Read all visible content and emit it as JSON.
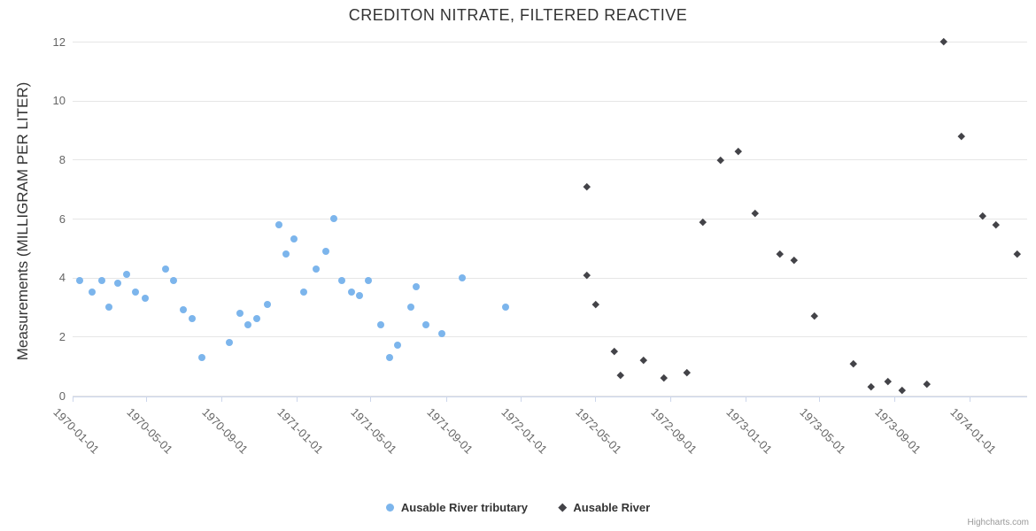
{
  "title": "CREDITON NITRATE, FILTERED REACTIVE",
  "credits": "Highcharts.com",
  "chart_data": {
    "type": "scatter",
    "title": "CREDITON NITRATE, FILTERED REACTIVE",
    "xlabel": "",
    "ylabel": "Measurements (MILLIGRAM PER LITER)",
    "ylim": [
      0,
      12
    ],
    "y_ticks": [
      0,
      2,
      4,
      6,
      8,
      10,
      12
    ],
    "xlim": [
      "1970-01-01",
      "1974-04-04"
    ],
    "x_tick_labels": [
      "1970-01-01",
      "1970-05-01",
      "1970-09-01",
      "1971-01-01",
      "1971-05-01",
      "1971-09-01",
      "1972-01-01",
      "1972-05-01",
      "1972-09-01",
      "1973-01-01",
      "1973-05-01",
      "1973-09-01",
      "1974-01-01"
    ],
    "grid": "horizontal-only",
    "legend_position": "bottom-center",
    "series": [
      {
        "name": "Ausable River tributary",
        "color": "#7cb5ec",
        "marker": "circle",
        "data": [
          [
            "1970-01-13",
            3.9
          ],
          [
            "1970-02-02",
            3.5
          ],
          [
            "1970-02-17",
            3.9
          ],
          [
            "1970-03-01",
            3.0
          ],
          [
            "1970-03-16",
            3.8
          ],
          [
            "1970-03-30",
            4.1
          ],
          [
            "1970-04-13",
            3.5
          ],
          [
            "1970-04-29",
            3.3
          ],
          [
            "1970-06-01",
            4.3
          ],
          [
            "1970-06-15",
            3.9
          ],
          [
            "1970-06-30",
            2.9
          ],
          [
            "1970-07-15",
            2.6
          ],
          [
            "1970-07-31",
            1.3
          ],
          [
            "1970-09-14",
            1.8
          ],
          [
            "1970-09-30",
            2.8
          ],
          [
            "1970-10-13",
            2.4
          ],
          [
            "1970-10-28",
            2.6
          ],
          [
            "1970-11-15",
            3.1
          ],
          [
            "1970-12-03",
            5.8
          ],
          [
            "1970-12-14",
            4.8
          ],
          [
            "1970-12-27",
            5.3
          ],
          [
            "1971-01-13",
            3.5
          ],
          [
            "1971-02-02",
            4.3
          ],
          [
            "1971-02-17",
            4.9
          ],
          [
            "1971-03-02",
            6.0
          ],
          [
            "1971-03-15",
            3.9
          ],
          [
            "1971-03-31",
            3.5
          ],
          [
            "1971-04-14",
            3.4
          ],
          [
            "1971-04-28",
            3.9
          ],
          [
            "1971-05-18",
            2.4
          ],
          [
            "1971-06-01",
            1.3
          ],
          [
            "1971-06-14",
            1.7
          ],
          [
            "1971-07-06",
            3.0
          ],
          [
            "1971-07-15",
            3.7
          ],
          [
            "1971-07-30",
            2.4
          ],
          [
            "1971-08-25",
            2.1
          ],
          [
            "1971-09-28",
            4.0
          ],
          [
            "1971-12-07",
            3.0
          ]
        ]
      },
      {
        "name": "Ausable River",
        "color": "#434348",
        "marker": "diamond",
        "data": [
          [
            "1972-04-17",
            4.1
          ],
          [
            "1972-04-18",
            7.1
          ],
          [
            "1972-05-02",
            3.1
          ],
          [
            "1972-06-01",
            1.5
          ],
          [
            "1972-06-12",
            0.7
          ],
          [
            "1972-07-19",
            1.2
          ],
          [
            "1972-08-21",
            0.6
          ],
          [
            "1972-09-27",
            0.8
          ],
          [
            "1972-10-24",
            5.9
          ],
          [
            "1972-11-22",
            8.0
          ],
          [
            "1972-12-20",
            8.3
          ],
          [
            "1973-01-17",
            6.2
          ],
          [
            "1973-02-26",
            4.8
          ],
          [
            "1973-03-21",
            4.6
          ],
          [
            "1973-04-24",
            2.7
          ],
          [
            "1973-06-26",
            1.1
          ],
          [
            "1973-07-25",
            0.3
          ],
          [
            "1973-08-21",
            0.5
          ],
          [
            "1973-09-13",
            0.2
          ],
          [
            "1973-10-24",
            0.4
          ],
          [
            "1973-11-20",
            12.0
          ],
          [
            "1973-12-19",
            8.8
          ],
          [
            "1974-01-22",
            6.1
          ],
          [
            "1974-02-13",
            5.8
          ],
          [
            "1974-03-20",
            4.8
          ]
        ]
      }
    ]
  }
}
